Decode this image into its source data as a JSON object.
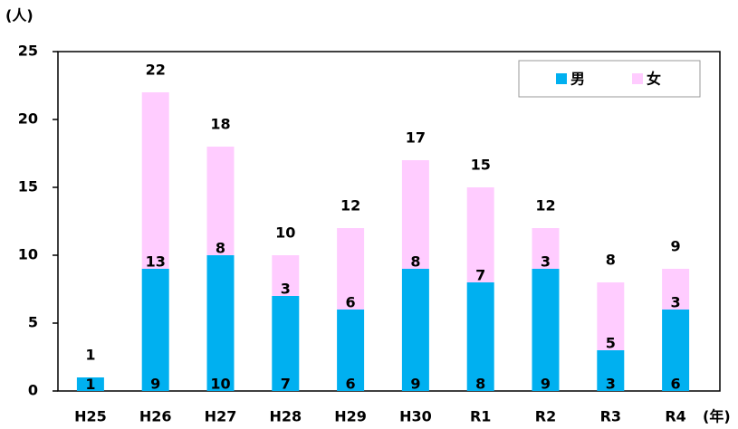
{
  "chart_data": {
    "type": "stacked_bar",
    "y_axis_label": "(人)",
    "x_axis_label": "(年)",
    "categories": [
      "H25",
      "H26",
      "H27",
      "H28",
      "H29",
      "H30",
      "R1",
      "R2",
      "R3",
      "R4"
    ],
    "series": [
      {
        "name": "男",
        "color": "#00b0f0",
        "values": [
          1,
          9,
          10,
          7,
          6,
          9,
          8,
          9,
          3,
          6
        ]
      },
      {
        "name": "女",
        "color": "#ffccff",
        "values": [
          0,
          13,
          8,
          3,
          6,
          8,
          7,
          3,
          5,
          3
        ]
      }
    ],
    "totals": [
      1,
      22,
      18,
      10,
      12,
      17,
      15,
      12,
      8,
      9
    ],
    "ylim": [
      0,
      25
    ],
    "yticks": [
      0,
      5,
      10,
      15,
      20,
      25
    ],
    "grid": false,
    "legend": "upper right"
  }
}
